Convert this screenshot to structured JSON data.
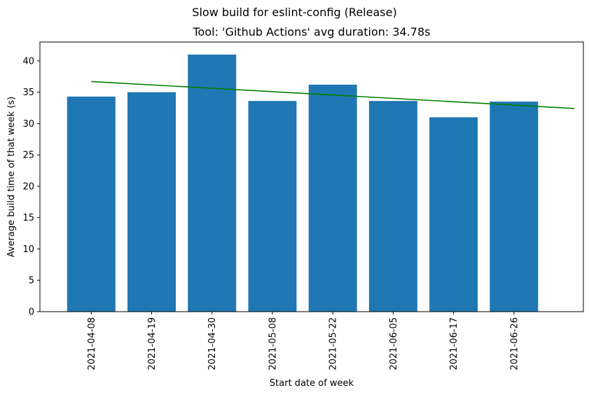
{
  "chart_data": {
    "type": "bar",
    "title": "Slow build for eslint-config (Release)",
    "subtitle": "Tool: 'Github Actions' avg duration: 34.78s",
    "xlabel": "Start date of week",
    "ylabel": "Average build time of that week (s)",
    "categories": [
      "2021-04-08",
      "2021-04-19",
      "2021-04-30",
      "2021-05-08",
      "2021-05-22",
      "2021-06-05",
      "2021-06-17",
      "2021-06-26"
    ],
    "values": [
      34.3,
      35.0,
      41.0,
      33.6,
      36.2,
      33.6,
      31.0,
      33.5
    ],
    "ylim": [
      0,
      43
    ],
    "yticks": [
      0,
      5,
      10,
      15,
      20,
      25,
      30,
      35,
      40
    ],
    "trendline": {
      "start": 36.7,
      "end": 32.4
    },
    "grid": false,
    "colors": {
      "bar": "#1f77b4",
      "trend": "#008000"
    }
  }
}
